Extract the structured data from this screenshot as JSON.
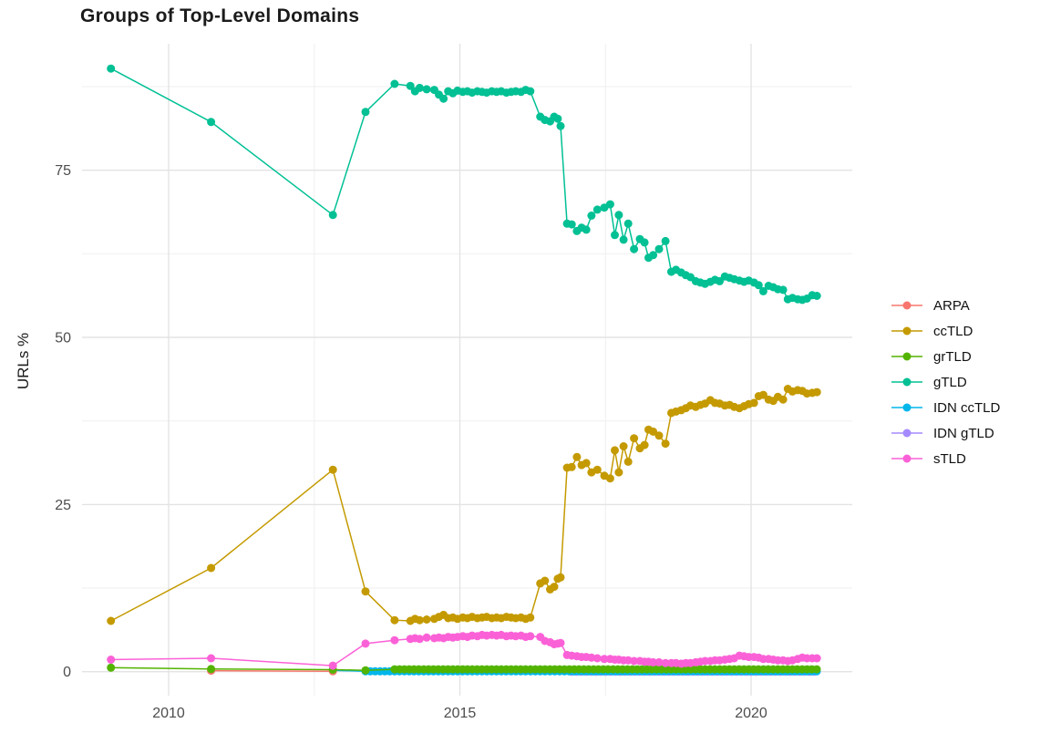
{
  "title": "Groups of Top-Level Domains",
  "axes": {
    "ylabel": "URLs %",
    "x_ticks": [
      2010,
      2015,
      2020
    ],
    "x_minor": [
      2012.5,
      2017.5
    ],
    "y_ticks": [
      0,
      25,
      50,
      75
    ],
    "y_minor": [
      12.5,
      37.5,
      62.5,
      87.5
    ]
  },
  "chart_data": {
    "type": "line",
    "title": "Groups of Top-Level Domains",
    "xlabel": "",
    "ylabel": "URLs %",
    "x_range": [
      2008.5,
      2021.7
    ],
    "ylim": [
      -3.5,
      94
    ],
    "grid": true,
    "legend_position": "right",
    "series": [
      {
        "name": "ARPA",
        "color": "#F8766D",
        "points": [
          [
            2010.73,
            0.15
          ],
          [
            2012.82,
            0.05
          ]
        ]
      },
      {
        "name": "ccTLD",
        "color": "#C49A00",
        "points": [
          [
            2009.01,
            7.6
          ],
          [
            2010.73,
            15.5
          ],
          [
            2012.82,
            30.2
          ],
          [
            2013.38,
            12.0
          ],
          [
            2013.88,
            7.7
          ],
          [
            2014.15,
            7.6
          ],
          [
            2014.23,
            7.9
          ],
          [
            2014.31,
            7.7
          ],
          [
            2014.43,
            7.8
          ],
          [
            2014.56,
            7.9
          ],
          [
            2014.64,
            8.2
          ],
          [
            2014.72,
            8.5
          ],
          [
            2014.8,
            8.0
          ],
          [
            2014.88,
            8.1
          ],
          [
            2014.96,
            7.9
          ],
          [
            2015.05,
            8.1
          ],
          [
            2015.13,
            8.0
          ],
          [
            2015.21,
            8.2
          ],
          [
            2015.3,
            8.0
          ],
          [
            2015.38,
            8.1
          ],
          [
            2015.46,
            8.2
          ],
          [
            2015.55,
            8.0
          ],
          [
            2015.63,
            8.1
          ],
          [
            2015.71,
            8.0
          ],
          [
            2015.8,
            8.2
          ],
          [
            2015.88,
            8.1
          ],
          [
            2015.96,
            8.0
          ],
          [
            2016.05,
            8.1
          ],
          [
            2016.13,
            7.9
          ],
          [
            2016.21,
            8.1
          ],
          [
            2016.38,
            13.2
          ],
          [
            2016.46,
            13.6
          ],
          [
            2016.55,
            12.3
          ],
          [
            2016.62,
            12.7
          ],
          [
            2016.68,
            13.9
          ],
          [
            2016.73,
            14.1
          ],
          [
            2016.84,
            30.5
          ],
          [
            2016.92,
            30.6
          ],
          [
            2017.01,
            32.1
          ],
          [
            2017.09,
            30.9
          ],
          [
            2017.17,
            31.2
          ],
          [
            2017.26,
            29.8
          ],
          [
            2017.36,
            30.2
          ],
          [
            2017.48,
            29.3
          ],
          [
            2017.58,
            28.9
          ],
          [
            2017.66,
            33.1
          ],
          [
            2017.73,
            29.8
          ],
          [
            2017.81,
            33.7
          ],
          [
            2017.89,
            31.4
          ],
          [
            2017.99,
            34.9
          ],
          [
            2018.09,
            33.4
          ],
          [
            2018.17,
            33.9
          ],
          [
            2018.24,
            36.2
          ],
          [
            2018.32,
            35.9
          ],
          [
            2018.42,
            35.3
          ],
          [
            2018.53,
            34.1
          ],
          [
            2018.63,
            38.7
          ],
          [
            2018.71,
            38.9
          ],
          [
            2018.8,
            39.1
          ],
          [
            2018.88,
            39.4
          ],
          [
            2018.96,
            39.8
          ],
          [
            2019.05,
            39.6
          ],
          [
            2019.13,
            39.9
          ],
          [
            2019.21,
            40.1
          ],
          [
            2019.3,
            40.6
          ],
          [
            2019.38,
            40.2
          ],
          [
            2019.46,
            40.1
          ],
          [
            2019.55,
            39.8
          ],
          [
            2019.63,
            39.9
          ],
          [
            2019.71,
            39.6
          ],
          [
            2019.8,
            39.4
          ],
          [
            2019.88,
            39.7
          ],
          [
            2019.96,
            40.0
          ],
          [
            2020.05,
            40.2
          ],
          [
            2020.13,
            41.2
          ],
          [
            2020.21,
            41.4
          ],
          [
            2020.3,
            40.7
          ],
          [
            2020.38,
            40.5
          ],
          [
            2020.46,
            41.1
          ],
          [
            2020.55,
            40.7
          ],
          [
            2020.63,
            42.3
          ],
          [
            2020.71,
            41.9
          ],
          [
            2020.8,
            42.1
          ],
          [
            2020.88,
            42.0
          ],
          [
            2020.96,
            41.6
          ],
          [
            2021.05,
            41.7
          ],
          [
            2021.13,
            41.8
          ]
        ]
      },
      {
        "name": "grTLD",
        "color": "#53B400",
        "points": [
          [
            2009.01,
            0.6
          ],
          [
            2010.73,
            0.4
          ],
          [
            2012.82,
            0.3
          ],
          [
            2013.38,
            0.2
          ]
        ],
        "band": {
          "start": 2013.88,
          "end": 2021.13,
          "step": 0.0833,
          "value": 0.35
        }
      },
      {
        "name": "gTLD",
        "color": "#00C094",
        "points": [
          [
            2009.01,
            90.2
          ],
          [
            2010.73,
            82.2
          ],
          [
            2012.82,
            68.3
          ],
          [
            2013.38,
            83.7
          ],
          [
            2013.88,
            87.9
          ],
          [
            2014.15,
            87.6
          ],
          [
            2014.23,
            86.8
          ],
          [
            2014.31,
            87.3
          ],
          [
            2014.43,
            87.1
          ],
          [
            2014.56,
            87.0
          ],
          [
            2014.64,
            86.3
          ],
          [
            2014.72,
            85.7
          ],
          [
            2014.8,
            86.8
          ],
          [
            2014.88,
            86.5
          ],
          [
            2014.96,
            86.9
          ],
          [
            2015.05,
            86.7
          ],
          [
            2015.13,
            86.8
          ],
          [
            2015.21,
            86.6
          ],
          [
            2015.3,
            86.8
          ],
          [
            2015.38,
            86.7
          ],
          [
            2015.46,
            86.6
          ],
          [
            2015.55,
            86.8
          ],
          [
            2015.63,
            86.7
          ],
          [
            2015.71,
            86.8
          ],
          [
            2015.8,
            86.6
          ],
          [
            2015.88,
            86.7
          ],
          [
            2015.96,
            86.8
          ],
          [
            2016.05,
            86.7
          ],
          [
            2016.13,
            87.0
          ],
          [
            2016.21,
            86.8
          ],
          [
            2016.38,
            83.0
          ],
          [
            2016.46,
            82.5
          ],
          [
            2016.55,
            82.3
          ],
          [
            2016.62,
            83.0
          ],
          [
            2016.68,
            82.7
          ],
          [
            2016.73,
            81.6
          ],
          [
            2016.84,
            67.0
          ],
          [
            2016.92,
            66.9
          ],
          [
            2017.01,
            65.9
          ],
          [
            2017.09,
            66.4
          ],
          [
            2017.17,
            66.1
          ],
          [
            2017.26,
            68.2
          ],
          [
            2017.36,
            69.1
          ],
          [
            2017.48,
            69.4
          ],
          [
            2017.58,
            69.9
          ],
          [
            2017.66,
            65.3
          ],
          [
            2017.73,
            68.3
          ],
          [
            2017.81,
            64.6
          ],
          [
            2017.89,
            67.0
          ],
          [
            2017.99,
            63.2
          ],
          [
            2018.09,
            64.7
          ],
          [
            2018.17,
            64.2
          ],
          [
            2018.24,
            61.9
          ],
          [
            2018.32,
            62.3
          ],
          [
            2018.42,
            63.2
          ],
          [
            2018.53,
            64.4
          ],
          [
            2018.63,
            59.8
          ],
          [
            2018.71,
            60.1
          ],
          [
            2018.8,
            59.7
          ],
          [
            2018.88,
            59.3
          ],
          [
            2018.96,
            59.0
          ],
          [
            2019.05,
            58.4
          ],
          [
            2019.13,
            58.2
          ],
          [
            2019.21,
            58.0
          ],
          [
            2019.3,
            58.3
          ],
          [
            2019.38,
            58.6
          ],
          [
            2019.46,
            58.4
          ],
          [
            2019.55,
            59.1
          ],
          [
            2019.63,
            58.9
          ],
          [
            2019.71,
            58.7
          ],
          [
            2019.8,
            58.5
          ],
          [
            2019.88,
            58.3
          ],
          [
            2019.96,
            58.5
          ],
          [
            2020.05,
            58.2
          ],
          [
            2020.13,
            57.8
          ],
          [
            2020.21,
            56.9
          ],
          [
            2020.3,
            57.7
          ],
          [
            2020.38,
            57.5
          ],
          [
            2020.46,
            57.2
          ],
          [
            2020.55,
            57.1
          ],
          [
            2020.63,
            55.7
          ],
          [
            2020.71,
            55.9
          ],
          [
            2020.8,
            55.7
          ],
          [
            2020.88,
            55.6
          ],
          [
            2020.96,
            55.8
          ],
          [
            2021.05,
            56.3
          ],
          [
            2021.13,
            56.2
          ]
        ]
      },
      {
        "name": "IDN ccTLD",
        "color": "#00B6EB",
        "points": [
          [
            2012.82,
            0.2
          ]
        ],
        "band": {
          "start": 2013.38,
          "end": 2021.13,
          "step": 0.0833,
          "value": 0.05
        }
      },
      {
        "name": "IDN gTLD",
        "color": "#A58AFF",
        "points": [],
        "band": {
          "start": 2016.92,
          "end": 2021.13,
          "step": 0.0833,
          "value": 0.0
        }
      },
      {
        "name": "sTLD",
        "color": "#FB61D7",
        "points": [
          [
            2009.01,
            1.8
          ],
          [
            2010.73,
            2.0
          ],
          [
            2012.82,
            0.9
          ],
          [
            2013.38,
            4.2
          ],
          [
            2013.88,
            4.7
          ],
          [
            2014.15,
            4.9
          ],
          [
            2014.23,
            5.0
          ],
          [
            2014.31,
            4.9
          ],
          [
            2014.43,
            5.1
          ],
          [
            2014.56,
            5.0
          ],
          [
            2014.64,
            5.1
          ],
          [
            2014.72,
            5.0
          ],
          [
            2014.8,
            5.2
          ],
          [
            2014.88,
            5.1
          ],
          [
            2014.96,
            5.2
          ],
          [
            2015.05,
            5.3
          ],
          [
            2015.13,
            5.2
          ],
          [
            2015.21,
            5.4
          ],
          [
            2015.3,
            5.3
          ],
          [
            2015.38,
            5.5
          ],
          [
            2015.46,
            5.4
          ],
          [
            2015.55,
            5.5
          ],
          [
            2015.63,
            5.4
          ],
          [
            2015.71,
            5.5
          ],
          [
            2015.8,
            5.3
          ],
          [
            2015.88,
            5.4
          ],
          [
            2015.96,
            5.3
          ],
          [
            2016.05,
            5.4
          ],
          [
            2016.13,
            5.2
          ],
          [
            2016.21,
            5.3
          ],
          [
            2016.38,
            5.2
          ],
          [
            2016.46,
            4.6
          ],
          [
            2016.55,
            4.4
          ],
          [
            2016.62,
            4.1
          ],
          [
            2016.68,
            4.2
          ],
          [
            2016.73,
            4.3
          ],
          [
            2016.84,
            2.5
          ],
          [
            2016.92,
            2.4
          ],
          [
            2017.01,
            2.3
          ],
          [
            2017.09,
            2.2
          ],
          [
            2017.17,
            2.2
          ],
          [
            2017.26,
            2.1
          ],
          [
            2017.36,
            2.0
          ],
          [
            2017.48,
            1.9
          ],
          [
            2017.58,
            1.9
          ],
          [
            2017.66,
            1.8
          ],
          [
            2017.73,
            1.8
          ],
          [
            2017.81,
            1.7
          ],
          [
            2017.89,
            1.7
          ],
          [
            2017.99,
            1.6
          ],
          [
            2018.09,
            1.6
          ],
          [
            2018.17,
            1.5
          ],
          [
            2018.24,
            1.5
          ],
          [
            2018.32,
            1.4
          ],
          [
            2018.42,
            1.4
          ],
          [
            2018.53,
            1.3
          ],
          [
            2018.63,
            1.3
          ],
          [
            2018.71,
            1.3
          ],
          [
            2018.8,
            1.2
          ],
          [
            2018.88,
            1.3
          ],
          [
            2018.96,
            1.3
          ],
          [
            2019.05,
            1.4
          ],
          [
            2019.13,
            1.5
          ],
          [
            2019.21,
            1.6
          ],
          [
            2019.3,
            1.6
          ],
          [
            2019.38,
            1.7
          ],
          [
            2019.46,
            1.7
          ],
          [
            2019.55,
            1.8
          ],
          [
            2019.63,
            1.9
          ],
          [
            2019.71,
            2.0
          ],
          [
            2019.8,
            2.4
          ],
          [
            2019.88,
            2.3
          ],
          [
            2019.96,
            2.2
          ],
          [
            2020.05,
            2.2
          ],
          [
            2020.13,
            2.1
          ],
          [
            2020.21,
            1.9
          ],
          [
            2020.3,
            1.9
          ],
          [
            2020.38,
            1.8
          ],
          [
            2020.46,
            1.7
          ],
          [
            2020.55,
            1.7
          ],
          [
            2020.63,
            1.6
          ],
          [
            2020.71,
            1.7
          ],
          [
            2020.8,
            1.9
          ],
          [
            2020.88,
            2.1
          ],
          [
            2020.96,
            2.0
          ],
          [
            2021.05,
            2.0
          ],
          [
            2021.13,
            2.0
          ]
        ]
      }
    ]
  }
}
